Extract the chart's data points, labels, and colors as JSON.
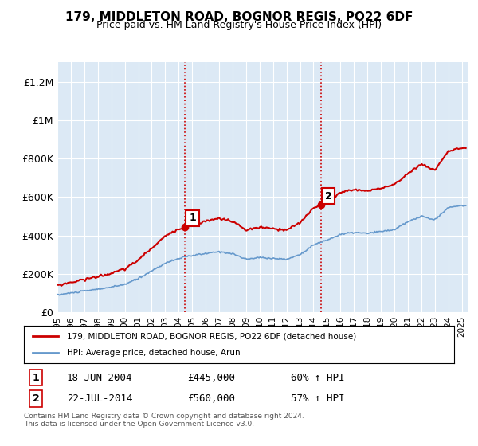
{
  "title": "179, MIDDLETON ROAD, BOGNOR REGIS, PO22 6DF",
  "subtitle": "Price paid vs. HM Land Registry's House Price Index (HPI)",
  "background_color": "#dce9f5",
  "plot_bg_color": "#dce9f5",
  "ylabel_color": "#222222",
  "ylim": [
    0,
    1300000
  ],
  "yticks": [
    0,
    200000,
    400000,
    600000,
    800000,
    1000000,
    1200000
  ],
  "ytick_labels": [
    "£0",
    "£200K",
    "£400K",
    "£600K",
    "£800K",
    "£1M",
    "£1.2M"
  ],
  "sale1": {
    "date_x": 2004.46,
    "price": 445000,
    "label": "1"
  },
  "sale2": {
    "date_x": 2014.55,
    "price": 560000,
    "label": "2"
  },
  "legend_line1": "179, MIDDLETON ROAD, BOGNOR REGIS, PO22 6DF (detached house)",
  "legend_line2": "HPI: Average price, detached house, Arun",
  "table_row1": [
    "1",
    "18-JUN-2004",
    "£445,000",
    "60% ↑ HPI"
  ],
  "table_row2": [
    "2",
    "22-JUL-2014",
    "£560,000",
    "57% ↑ HPI"
  ],
  "footer": "Contains HM Land Registry data © Crown copyright and database right 2024.\nThis data is licensed under the Open Government Licence v3.0.",
  "red_color": "#cc0000",
  "blue_color": "#6699cc",
  "xmin": 1995.0,
  "xmax": 2025.5
}
